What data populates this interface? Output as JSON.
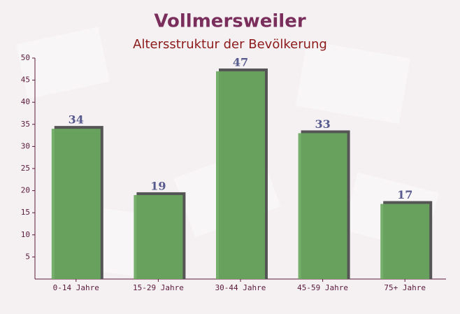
{
  "chart_data": {
    "type": "bar",
    "title": "Vollmersweiler",
    "subtitle": "Altersstruktur der Bevölkerung",
    "categories": [
      "0-14 Jahre",
      "15-29 Jahre",
      "30-44 Jahre",
      "45-59 Jahre",
      "75+ Jahre"
    ],
    "values": [
      34,
      19,
      47,
      33,
      17
    ],
    "color": "#6aa85f",
    "ylim": [
      0,
      50
    ],
    "yticks": [
      5,
      10,
      15,
      20,
      25,
      30,
      35,
      40,
      45,
      50
    ],
    "grid": false
  }
}
